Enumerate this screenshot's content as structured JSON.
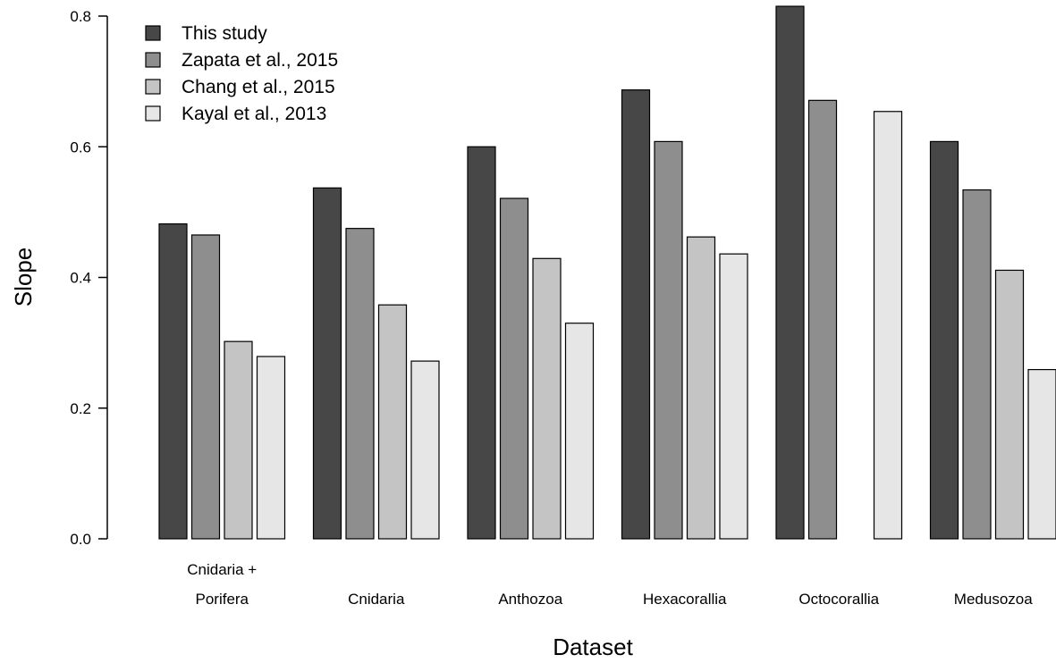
{
  "chart_data": {
    "type": "bar",
    "xlabel": "Dataset",
    "ylabel": "Slope",
    "ylim": [
      0,
      0.8
    ],
    "yticks": [
      "0.0",
      "0.2",
      "0.4",
      "0.6",
      "0.8"
    ],
    "grid": false,
    "legend_position": "top-left",
    "categories": [
      [
        "Cnidaria +",
        "Porifera"
      ],
      [
        "Cnidaria"
      ],
      [
        "Anthozoa"
      ],
      [
        "Hexacorallia"
      ],
      [
        "Octocorallia"
      ],
      [
        "Medusozoa"
      ]
    ],
    "series": [
      {
        "name": "This study",
        "color": "#474747",
        "values": [
          0.482,
          0.537,
          0.6,
          0.687,
          0.815,
          0.608
        ]
      },
      {
        "name": "Zapata et al., 2015",
        "color": "#8e8e8e",
        "values": [
          0.465,
          0.475,
          0.521,
          0.608,
          0.671,
          0.534
        ]
      },
      {
        "name": "Chang et al., 2015",
        "color": "#c4c4c4",
        "values": [
          0.302,
          0.358,
          0.429,
          0.462,
          null,
          0.411
        ]
      },
      {
        "name": "Kayal et al., 2013",
        "color": "#e6e6e6",
        "values": [
          0.279,
          0.272,
          0.33,
          0.436,
          0.654,
          0.259
        ]
      }
    ]
  }
}
